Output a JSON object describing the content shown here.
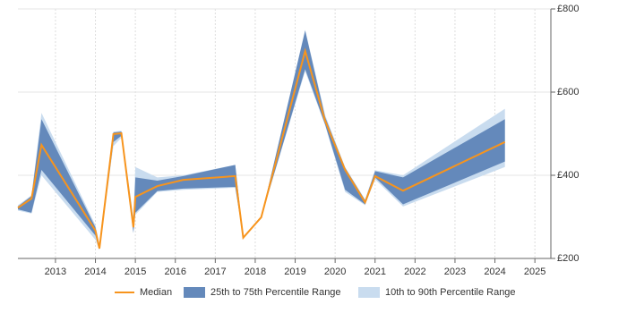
{
  "chart_data": {
    "type": "line",
    "x": [
      2012.06,
      2012.4,
      2012.65,
      2014.0,
      2014.1,
      2014.45,
      2014.65,
      2014.95,
      2015.0,
      2015.55,
      2016.2,
      2017.5,
      2017.7,
      2018.15,
      2019.25,
      2019.75,
      2020.25,
      2020.75,
      2021.0,
      2021.7,
      2024.25
    ],
    "series": [
      {
        "name": "Median",
        "color": "#f7941d",
        "values": [
          322,
          344,
          473,
          267,
          224,
          499,
          501,
          275,
          348,
          374,
          389,
          398,
          250,
          299,
          699,
          531,
          413,
          335,
          398,
          363,
          480
        ]
      },
      {
        "name": "25th to 75th Percentile Range",
        "color": "#6489bb",
        "low": [
          318,
          310,
          413,
          255,
          222,
          480,
          495,
          262,
          310,
          362,
          368,
          372,
          250,
          299,
          655,
          522,
          365,
          330,
          395,
          330,
          433
        ],
        "high": [
          325,
          350,
          535,
          275,
          230,
          503,
          505,
          290,
          395,
          387,
          398,
          425,
          250,
          299,
          748,
          540,
          418,
          340,
          410,
          395,
          535
        ]
      },
      {
        "name": "10th to 90th Percentile Range",
        "color": "#c9dcef",
        "low": [
          315,
          308,
          400,
          245,
          220,
          470,
          490,
          260,
          305,
          360,
          365,
          370,
          250,
          299,
          650,
          520,
          360,
          328,
          390,
          325,
          420
        ],
        "high": [
          328,
          352,
          550,
          280,
          235,
          505,
          507,
          300,
          420,
          395,
          400,
          425,
          250,
          299,
          750,
          545,
          420,
          342,
          412,
          400,
          560
        ]
      }
    ],
    "xlim": [
      2012.06,
      2025.4
    ],
    "xticks": [
      2013,
      2014,
      2015,
      2016,
      2017,
      2018,
      2019,
      2020,
      2021,
      2022,
      2023,
      2024,
      2025
    ],
    "ylim": [
      200,
      800
    ],
    "yticks": [
      {
        "value": 200,
        "label": "£200"
      },
      {
        "value": 400,
        "label": "£400"
      },
      {
        "value": 600,
        "label": "£600"
      },
      {
        "value": 800,
        "label": "£800"
      }
    ],
    "grid": true,
    "legend": "bottom"
  }
}
